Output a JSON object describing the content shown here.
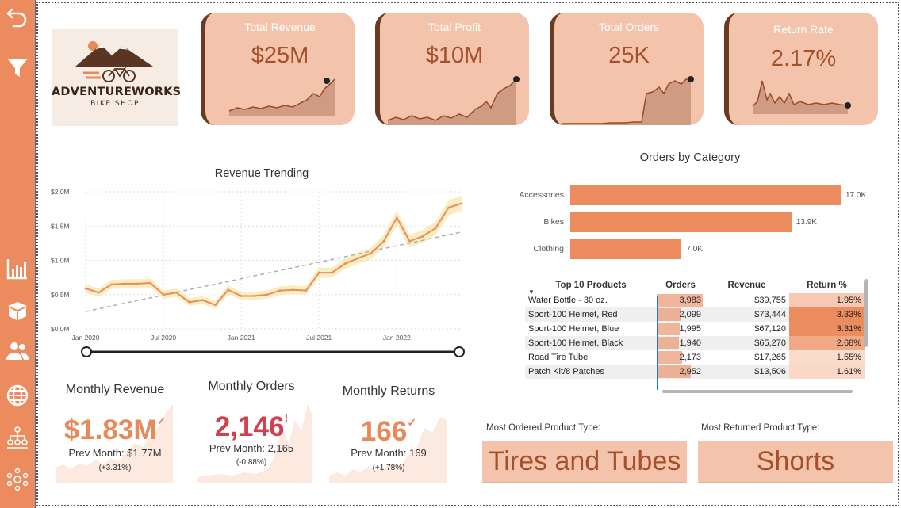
{
  "logo": {
    "line1": "ADVENTUREWORKS",
    "line2": "BIKE SHOP"
  },
  "sidebar": {
    "items": [
      {
        "icon": "back-arrow-icon"
      },
      {
        "icon": "filter-icon"
      },
      {
        "icon": "bar-chart-icon"
      },
      {
        "icon": "box-icon"
      },
      {
        "icon": "users-icon"
      },
      {
        "icon": "globe-icon"
      },
      {
        "icon": "hierarchy-icon"
      },
      {
        "icon": "network-icon"
      }
    ]
  },
  "kpis": [
    {
      "title": "Total Revenue",
      "value": "$25M"
    },
    {
      "title": "Total Profit",
      "value": "$10M"
    },
    {
      "title": "Total Orders",
      "value": "25K"
    },
    {
      "title": "Return Rate",
      "value": "2.17%"
    }
  ],
  "revenue_trending": {
    "title": "Revenue Trending",
    "y_ticks": [
      "$2.0M",
      "$1.5M",
      "$1.0M",
      "$0.5M",
      "$0.0M"
    ],
    "x_ticks": [
      "Jan 2020",
      "Jul 2020",
      "Jan 2021",
      "Jul 2021",
      "Jan 2022"
    ]
  },
  "chart_data": [
    {
      "type": "line",
      "title": "Revenue Trending",
      "xlabel": "",
      "ylabel": "",
      "ylim": [
        0,
        2000000
      ],
      "x": [
        "2020-01",
        "2020-02",
        "2020-03",
        "2020-04",
        "2020-05",
        "2020-06",
        "2020-07",
        "2020-08",
        "2020-09",
        "2020-10",
        "2020-11",
        "2020-12",
        "2021-01",
        "2021-02",
        "2021-03",
        "2021-04",
        "2021-05",
        "2021-06",
        "2021-07",
        "2021-08",
        "2021-09",
        "2021-10",
        "2021-11",
        "2021-12",
        "2022-01",
        "2022-02",
        "2022-03",
        "2022-04",
        "2022-05",
        "2022-06"
      ],
      "series": [
        {
          "values": [
            590000,
            530000,
            650000,
            660000,
            660000,
            670000,
            500000,
            530000,
            390000,
            420000,
            350000,
            570000,
            480000,
            480000,
            500000,
            560000,
            570000,
            560000,
            820000,
            820000,
            950000,
            1030000,
            1100000,
            1280000,
            1620000,
            1280000,
            1350000,
            1470000,
            1770000,
            1830000
          ]
        }
      ],
      "trend_line": true,
      "grid": true
    },
    {
      "type": "bar",
      "title": "Orders by Category",
      "categories": [
        "Accessories",
        "Bikes",
        "Clothing"
      ],
      "values": [
        17000,
        13900,
        7000
      ],
      "value_labels": [
        "17.0K",
        "13.9K",
        "7.0K"
      ]
    }
  ],
  "monthly": [
    {
      "title": "Monthly Revenue",
      "value": "$1.83M",
      "indicator": "✓",
      "prev": "Prev Month: $1.77M",
      "pct": "(+3.31%)",
      "color": "#e8895a"
    },
    {
      "title": "Monthly Orders",
      "value": "2,146",
      "indicator": "!",
      "prev": "Prev Month: 2,165",
      "pct": "(-0.88%)",
      "color": "#d23f4f"
    },
    {
      "title": "Monthly Returns",
      "value": "166",
      "indicator": "✓",
      "prev": "Prev Month: 169",
      "pct": "(+1.78%)",
      "color": "#e8895a"
    }
  ],
  "orders_by_category": {
    "title": "Orders by Category"
  },
  "top_products": {
    "headers": [
      "Top 10 Products",
      "Orders",
      "Revenue",
      "Return %"
    ],
    "rows": [
      {
        "name": "Water Bottle - 30 oz.",
        "orders": "3,983",
        "orders_frac": 1.0,
        "revenue": "$39,755",
        "ret": "1.95%",
        "ret_level": 0.35
      },
      {
        "name": "Sport-100 Helmet, Red",
        "orders": "2,099",
        "orders_frac": 0.53,
        "revenue": "$73,444",
        "ret": "3.33%",
        "ret_level": 1.0
      },
      {
        "name": "Sport-100 Helmet, Blue",
        "orders": "1,995",
        "orders_frac": 0.5,
        "revenue": "$67,120",
        "ret": "3.31%",
        "ret_level": 0.98
      },
      {
        "name": "Sport-100 Helmet, Black",
        "orders": "1,940",
        "orders_frac": 0.49,
        "revenue": "$65,270",
        "ret": "2.68%",
        "ret_level": 0.7
      },
      {
        "name": "Road Tire Tube",
        "orders": "2,173",
        "orders_frac": 0.55,
        "revenue": "$17,265",
        "ret": "1.55%",
        "ret_level": 0.15
      },
      {
        "name": "Patch Kit/8 Patches",
        "orders": "2,952",
        "orders_frac": 0.74,
        "revenue": "$13,506",
        "ret": "1.61%",
        "ret_level": 0.2
      }
    ]
  },
  "product_types": {
    "most_ordered_label": "Most Ordered Product Type:",
    "most_ordered_value": "Tires and Tubes",
    "most_returned_label": "Most Returned Product Type:",
    "most_returned_value": "Shorts"
  },
  "colors": {
    "accent": "#ec8b5e",
    "kpi_bg": "#f4c3ac",
    "kpi_text": "#a5502a",
    "negative": "#d23f4f"
  }
}
